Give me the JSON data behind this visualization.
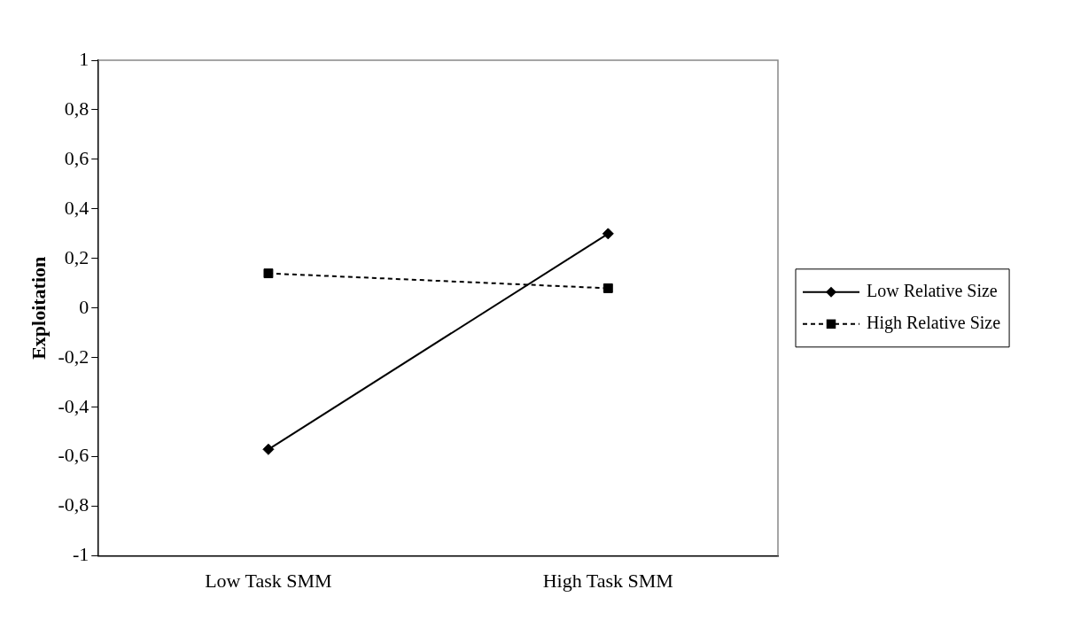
{
  "chart_data": {
    "type": "line",
    "ylabel": "Exploitation",
    "categories": [
      "Low Task SMM",
      "High Task SMM"
    ],
    "series": [
      {
        "name": "Low Relative Size",
        "color": "#000000",
        "values": [
          -0.57,
          0.3
        ],
        "marker": "diamond",
        "line_style": "solid"
      },
      {
        "name": "High Relative Size",
        "color": "#000000",
        "values": [
          0.14,
          0.08
        ],
        "marker": "square",
        "line_style": "dashed"
      }
    ],
    "ylim": [
      -1,
      1
    ],
    "yticks": [
      {
        "value": -1,
        "label": "-1"
      },
      {
        "value": -0.8,
        "label": "-0,8"
      },
      {
        "value": -0.6,
        "label": "-0,6"
      },
      {
        "value": -0.4,
        "label": "-0,4"
      },
      {
        "value": -0.2,
        "label": "-0,2"
      },
      {
        "value": 0,
        "label": "0"
      },
      {
        "value": 0.2,
        "label": "0,2"
      },
      {
        "value": 0.4,
        "label": "0,4"
      },
      {
        "value": 0.6,
        "label": "0,6"
      },
      {
        "value": 0.8,
        "label": "0,8"
      },
      {
        "value": 1,
        "label": "1"
      }
    ],
    "grid": false,
    "legend": "right"
  }
}
